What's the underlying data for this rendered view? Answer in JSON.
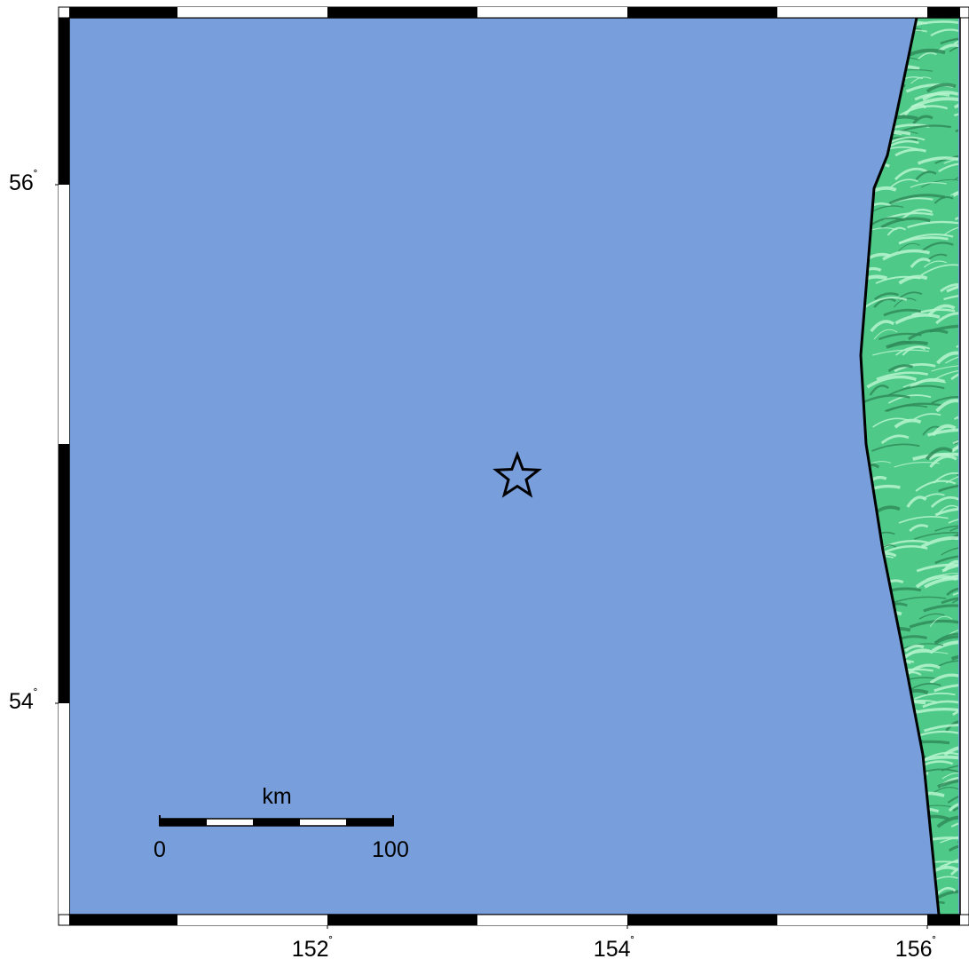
{
  "map": {
    "colors": {
      "ocean": "#789fdc",
      "land": "#4fc987",
      "land_highlight": "#b6f4cf",
      "land_shadow": "#2f8c5a",
      "coastline": "#000000",
      "frame_dark": "#000000",
      "frame_light": "#ffffff"
    },
    "longitude_labels": [
      {
        "value": "152",
        "degree": "˚"
      },
      {
        "value": "154",
        "degree": "˚"
      },
      {
        "value": "156",
        "degree": "˚"
      }
    ],
    "latitude_labels": [
      {
        "value": "56",
        "degree": "˚"
      },
      {
        "value": "54",
        "degree": "˚"
      }
    ],
    "epicenter": {
      "symbol": "star-icon"
    },
    "scale_bar": {
      "unit": "km",
      "start_label": "0",
      "end_label": "100",
      "max_km": 100
    }
  }
}
